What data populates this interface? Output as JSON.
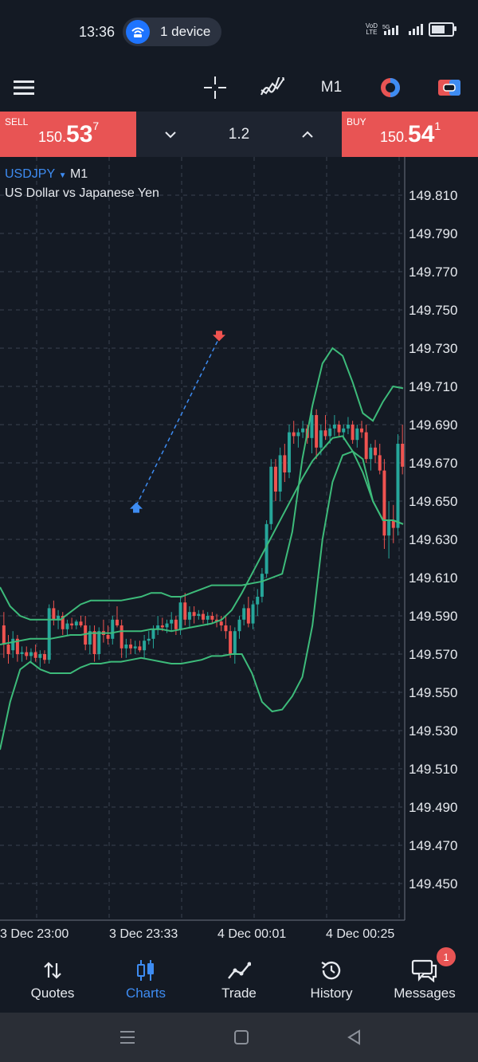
{
  "status_bar": {
    "time": "13:36",
    "device_pill": "1 device",
    "volte_top": "VoD",
    "volte_bottom": "LTE",
    "network": "5G"
  },
  "toolbar": {
    "timeframe": "M1",
    "icons": [
      "menu-icon",
      "crosshair-icon",
      "indicators-icon",
      "timeframe",
      "chart-color-icon",
      "trade-toggle-icon"
    ]
  },
  "trade": {
    "sell_label": "SELL",
    "sell_price_small": "150.",
    "sell_price_big": "53",
    "sell_price_sup": "7",
    "buy_label": "BUY",
    "buy_price_small": "150.",
    "buy_price_big": "54",
    "buy_price_sup": "1",
    "lot": "1.2"
  },
  "chart": {
    "symbol": "USDJPY",
    "timeframe": "M1",
    "description": "US Dollar vs Japanese Yen"
  },
  "chart_data": {
    "type": "candlestick",
    "ylim": [
      149.43,
      149.83
    ],
    "y_ticks": [
      "149.810",
      "149.790",
      "149.770",
      "149.750",
      "149.730",
      "149.710",
      "149.690",
      "149.670",
      "149.650",
      "149.630",
      "149.610",
      "149.590",
      "149.570",
      "149.550",
      "149.530",
      "149.510",
      "149.490",
      "149.470",
      "149.450"
    ],
    "x_ticks": [
      "3 Dec 23:00",
      "3 Dec 23:33",
      "4 Dec 00:01",
      "4 Dec 00:25"
    ],
    "grid": true,
    "up_color": "#26a69a",
    "down_color": "#ef5350",
    "bands_color": "#3dbb7a",
    "candles": [
      [
        149.585,
        149.592,
        149.568,
        149.575
      ],
      [
        149.575,
        149.58,
        149.565,
        149.57
      ],
      [
        149.572,
        149.582,
        149.568,
        149.578
      ],
      [
        149.578,
        149.58,
        149.566,
        149.57
      ],
      [
        149.57,
        149.574,
        149.566,
        149.571
      ],
      [
        149.571,
        149.574,
        149.567,
        149.569
      ],
      [
        149.569,
        149.573,
        149.565,
        149.571
      ],
      [
        149.571,
        149.575,
        149.566,
        149.568
      ],
      [
        149.568,
        149.572,
        149.563,
        149.57
      ],
      [
        149.57,
        149.572,
        149.565,
        149.567
      ],
      [
        149.567,
        149.596,
        149.565,
        149.594
      ],
      [
        149.594,
        149.598,
        149.585,
        149.588
      ],
      [
        149.588,
        149.593,
        149.583,
        149.59
      ],
      [
        149.59,
        149.592,
        149.58,
        149.583
      ],
      [
        149.583,
        149.588,
        149.58,
        149.586
      ],
      [
        149.586,
        149.589,
        149.583,
        149.585
      ],
      [
        149.585,
        149.588,
        149.583,
        149.587
      ],
      [
        149.587,
        149.59,
        149.584,
        149.585
      ],
      [
        149.585,
        149.59,
        149.572,
        149.575
      ],
      [
        149.575,
        149.585,
        149.57,
        149.582
      ],
      [
        149.582,
        149.585,
        149.566,
        149.57
      ],
      [
        149.57,
        149.584,
        149.567,
        149.582
      ],
      [
        149.582,
        149.588,
        149.576,
        149.58
      ],
      [
        149.58,
        149.585,
        149.575,
        149.578
      ],
      [
        149.578,
        149.59,
        149.575,
        149.588
      ],
      [
        149.588,
        149.595,
        149.584,
        149.585
      ],
      [
        149.585,
        149.588,
        149.568,
        149.573
      ],
      [
        149.573,
        149.578,
        149.568,
        149.575
      ],
      [
        149.575,
        149.578,
        149.57,
        149.573
      ],
      [
        149.573,
        149.577,
        149.57,
        149.574
      ],
      [
        149.574,
        149.577,
        149.571,
        149.572
      ],
      [
        149.572,
        149.58,
        149.568,
        149.577
      ],
      [
        149.577,
        149.582,
        149.575,
        149.578
      ],
      [
        149.578,
        149.585,
        149.573,
        149.583
      ],
      [
        149.583,
        149.59,
        149.58,
        149.585
      ],
      [
        149.585,
        149.589,
        149.582,
        149.584
      ],
      [
        149.584,
        149.588,
        149.581,
        149.586
      ],
      [
        149.586,
        149.592,
        149.582,
        149.588
      ],
      [
        149.588,
        149.59,
        149.58,
        149.583
      ],
      [
        149.583,
        149.6,
        149.58,
        149.597
      ],
      [
        149.597,
        149.602,
        149.585,
        149.588
      ],
      [
        149.588,
        149.595,
        149.584,
        149.592
      ],
      [
        149.592,
        149.595,
        149.586,
        149.59
      ],
      [
        149.59,
        149.593,
        149.588,
        149.591
      ],
      [
        149.591,
        149.593,
        149.586,
        149.588
      ],
      [
        149.588,
        149.592,
        149.585,
        149.59
      ],
      [
        149.59,
        149.592,
        149.586,
        149.588
      ],
      [
        149.588,
        149.591,
        149.584,
        149.587
      ],
      [
        149.587,
        149.59,
        149.582,
        149.585
      ],
      [
        149.585,
        149.59,
        149.578,
        149.582
      ],
      [
        149.582,
        149.585,
        149.568,
        149.57
      ],
      [
        149.57,
        149.584,
        149.565,
        149.582
      ],
      [
        149.582,
        149.59,
        149.578,
        149.588
      ],
      [
        149.588,
        149.596,
        149.585,
        149.594
      ],
      [
        149.594,
        149.6,
        149.584,
        149.586
      ],
      [
        149.586,
        149.598,
        149.583,
        149.596
      ],
      [
        149.596,
        149.604,
        149.59,
        149.6
      ],
      [
        149.6,
        149.615,
        149.597,
        149.612
      ],
      [
        149.612,
        149.64,
        149.61,
        149.638
      ],
      [
        149.638,
        149.672,
        149.635,
        149.668
      ],
      [
        149.668,
        149.672,
        149.65,
        149.655
      ],
      [
        149.655,
        149.678,
        149.65,
        149.674
      ],
      [
        149.674,
        149.68,
        149.66,
        149.665
      ],
      [
        149.665,
        149.69,
        149.662,
        149.686
      ],
      [
        149.686,
        149.692,
        149.68,
        149.684
      ],
      [
        149.684,
        149.688,
        149.678,
        149.686
      ],
      [
        149.686,
        149.692,
        149.683,
        149.688
      ],
      [
        149.688,
        149.69,
        149.68,
        149.683
      ],
      [
        149.683,
        149.698,
        149.675,
        149.695
      ],
      [
        149.695,
        149.698,
        149.672,
        149.678
      ],
      [
        149.678,
        149.69,
        149.674,
        149.687
      ],
      [
        149.687,
        149.695,
        149.682,
        149.684
      ],
      [
        149.684,
        149.69,
        149.68,
        149.688
      ],
      [
        149.688,
        149.695,
        149.684,
        149.69
      ],
      [
        149.69,
        149.692,
        149.684,
        149.686
      ],
      [
        149.686,
        149.69,
        149.682,
        149.688
      ],
      [
        149.688,
        149.694,
        149.685,
        149.69
      ],
      [
        149.69,
        149.692,
        149.68,
        149.682
      ],
      [
        149.682,
        149.69,
        149.678,
        149.688
      ],
      [
        149.688,
        149.692,
        149.683,
        149.686
      ],
      [
        149.686,
        149.69,
        149.67,
        149.672
      ],
      [
        149.672,
        149.68,
        149.666,
        149.678
      ],
      [
        149.678,
        149.682,
        149.67,
        149.674
      ],
      [
        149.674,
        149.68,
        149.664,
        149.666
      ],
      [
        149.666,
        149.672,
        149.625,
        149.632
      ],
      [
        149.632,
        149.65,
        149.62,
        149.64
      ],
      [
        149.64,
        149.648,
        149.628,
        149.636
      ],
      [
        149.636,
        149.685,
        149.632,
        149.68
      ],
      [
        149.68,
        149.69,
        149.664,
        149.668
      ]
    ],
    "bands_upper": [
      149.605,
      149.595,
      149.59,
      149.588,
      149.588,
      149.588,
      149.588,
      149.592,
      149.596,
      149.598,
      149.598,
      149.598,
      149.598,
      149.599,
      149.6,
      149.602,
      149.602,
      149.6,
      149.6,
      149.602,
      149.604,
      149.606,
      149.606,
      149.606,
      149.606,
      149.607,
      149.608,
      149.61,
      149.612,
      149.634,
      149.672,
      149.7,
      149.722,
      149.73,
      149.726,
      149.712,
      149.696,
      149.692,
      149.702,
      149.71,
      149.709
    ],
    "bands_middle": [
      149.575,
      149.576,
      149.577,
      149.578,
      149.578,
      149.578,
      149.579,
      149.58,
      149.58,
      149.581,
      149.581,
      149.581,
      149.582,
      149.582,
      149.582,
      149.583,
      149.583,
      149.582,
      149.583,
      149.584,
      149.585,
      149.586,
      149.588,
      149.593,
      149.602,
      149.612,
      149.622,
      149.632,
      149.642,
      149.652,
      149.662,
      149.671,
      149.677,
      149.683,
      149.684,
      149.676,
      149.665,
      149.65,
      149.64,
      149.64,
      149.638
    ],
    "bands_lower": [
      149.52,
      149.545,
      149.562,
      149.566,
      149.562,
      149.56,
      149.56,
      149.56,
      149.563,
      149.565,
      149.565,
      149.566,
      149.566,
      149.567,
      149.568,
      149.567,
      149.566,
      149.565,
      149.565,
      149.566,
      149.567,
      149.569,
      149.569,
      149.57,
      149.57,
      149.56,
      149.545,
      149.54,
      149.541,
      149.548,
      149.558,
      149.585,
      149.63,
      149.66,
      149.674,
      149.676,
      149.672,
      149.65,
      149.64,
      149.64,
      149.638
    ],
    "trade_markers": [
      {
        "type": "buy",
        "price": 149.646
      },
      {
        "type": "sell",
        "price": 149.737
      }
    ]
  },
  "bottom_nav": [
    {
      "label": "Quotes",
      "icon": "quotes-arrows-icon"
    },
    {
      "label": "Charts",
      "icon": "candles-icon",
      "active": true
    },
    {
      "label": "Trade",
      "icon": "trade-line-icon"
    },
    {
      "label": "History",
      "icon": "history-clock-icon"
    },
    {
      "label": "Messages",
      "icon": "messages-icon",
      "badge": "1"
    }
  ],
  "colors": {
    "background": "#141a24",
    "sell_buy": "#e85454",
    "accent_blue": "#3e8cf2",
    "band_green": "#3dbb7a"
  }
}
